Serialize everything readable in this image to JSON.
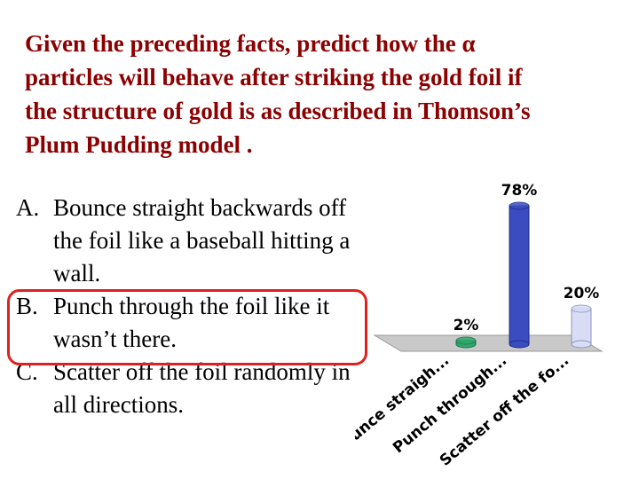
{
  "question": {
    "line1": "Given the preceding facts, predict how the α",
    "line2": "particles will behave after striking the gold foil if",
    "line3": "the structure of gold is as described in Thomson’s",
    "line4": "Plum Pudding model ."
  },
  "answers": [
    {
      "letter": "A.",
      "text": "Bounce straight backwards off the foil like a baseball hitting a wall."
    },
    {
      "letter": "B.",
      "text": "Punch through the foil like it wasn’t there."
    },
    {
      "letter": "C.",
      "text": "Scatter off the foil randomly in all directions."
    }
  ],
  "colors": {
    "question": "#8b0000",
    "highlight": "#e02020",
    "bar": "#3a4dc0"
  },
  "chart_data": {
    "type": "bar",
    "categories": [
      "Bounce straigh...",
      "Punch through...",
      "Scatter off the fo..."
    ],
    "values": [
      2,
      78,
      20
    ],
    "value_labels": [
      "2%",
      "78%",
      "20%"
    ],
    "ylim": [
      0,
      100
    ],
    "grid": false
  }
}
